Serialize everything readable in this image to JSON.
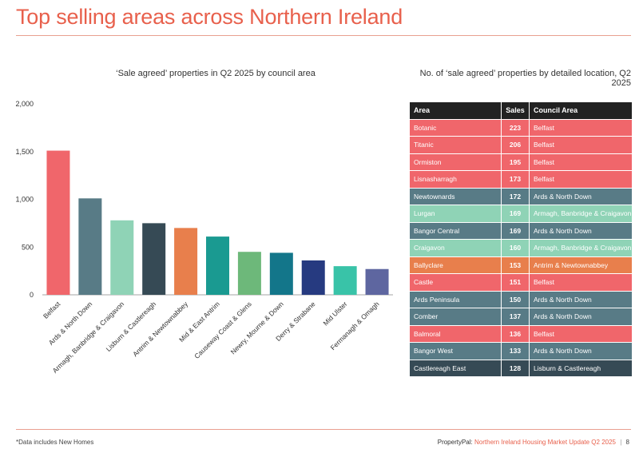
{
  "title": "Top selling areas across Northern Ireland",
  "footer": {
    "note": "*Data includes New Homes",
    "brand": "PropertyPal:",
    "report": "Northern Ireland Housing Market Update Q2 2025",
    "separator": "|",
    "page": "8"
  },
  "colors": {
    "title": "#e8604c",
    "belfast": "#f0666b",
    "ards": "#587b86",
    "armagh": "#8fd3b6",
    "lisburn": "#364a55",
    "antrim": "#e87f4c"
  },
  "chart_data": {
    "type": "bar",
    "title": "‘Sale agreed’ properties in Q2 2025 by council area",
    "xlabel": "",
    "ylabel": "",
    "ylim": [
      0,
      2000
    ],
    "yticks": [
      "0",
      "500",
      "1,000",
      "1,500",
      "2,000"
    ],
    "ytick_values": [
      0,
      500,
      1000,
      1500,
      2000
    ],
    "grid": false,
    "categories": [
      "Belfast",
      "Ards & North Down",
      "Armagh, Banbridge & Craigavon",
      "Lisburn & Castlereagh",
      "Antrim & Newtownabbey",
      "Mid & East Antrim",
      "Causeway Coast & Glens",
      "Newry, Mourne & Down",
      "Derry & Strabane",
      "Mid Ulster",
      "Fermanagh & Omagh"
    ],
    "values": [
      1510,
      1010,
      780,
      750,
      700,
      610,
      450,
      440,
      360,
      300,
      270
    ],
    "colors": [
      "#f0666b",
      "#587b86",
      "#8fd3b6",
      "#364a55",
      "#e87f4c",
      "#1a9a91",
      "#6db87a",
      "#13768a",
      "#263a80",
      "#39c3a8",
      "#5e66a0"
    ]
  },
  "table": {
    "title": "No. of ‘sale agreed’ properties by detailed location, Q2 2025",
    "headers": [
      "Area",
      "Sales",
      "Council Area"
    ],
    "rows": [
      {
        "area": "Botanic",
        "sales": "223",
        "council": "Belfast",
        "color": "#f0666b"
      },
      {
        "area": "Titanic",
        "sales": "206",
        "council": "Belfast",
        "color": "#f0666b"
      },
      {
        "area": "Ormiston",
        "sales": "195",
        "council": "Belfast",
        "color": "#f0666b"
      },
      {
        "area": "Lisnasharragh",
        "sales": "173",
        "council": "Belfast",
        "color": "#f0666b"
      },
      {
        "area": "Newtownards",
        "sales": "172",
        "council": "Ards & North Down",
        "color": "#587b86"
      },
      {
        "area": "Lurgan",
        "sales": "169",
        "council": "Armagh, Banbridge & Craigavon",
        "color": "#8fd3b6"
      },
      {
        "area": "Bangor Central",
        "sales": "169",
        "council": "Ards & North Down",
        "color": "#587b86"
      },
      {
        "area": "Craigavon",
        "sales": "160",
        "council": "Armagh, Banbridge & Craigavon",
        "color": "#8fd3b6"
      },
      {
        "area": "Ballyclare",
        "sales": "153",
        "council": "Antrim & Newtownabbey",
        "color": "#e87f4c"
      },
      {
        "area": "Castle",
        "sales": "151",
        "council": "Belfast",
        "color": "#f0666b"
      },
      {
        "area": "Ards Peninsula",
        "sales": "150",
        "council": "Ards & North Down",
        "color": "#587b86"
      },
      {
        "area": "Comber",
        "sales": "137",
        "council": "Ards & North Down",
        "color": "#587b86"
      },
      {
        "area": "Balmoral",
        "sales": "136",
        "council": "Belfast",
        "color": "#f0666b"
      },
      {
        "area": "Bangor West",
        "sales": "133",
        "council": "Ards & North Down",
        "color": "#587b86"
      },
      {
        "area": "Castlereagh East",
        "sales": "128",
        "council": "Lisburn & Castlereagh",
        "color": "#364a55"
      }
    ]
  }
}
